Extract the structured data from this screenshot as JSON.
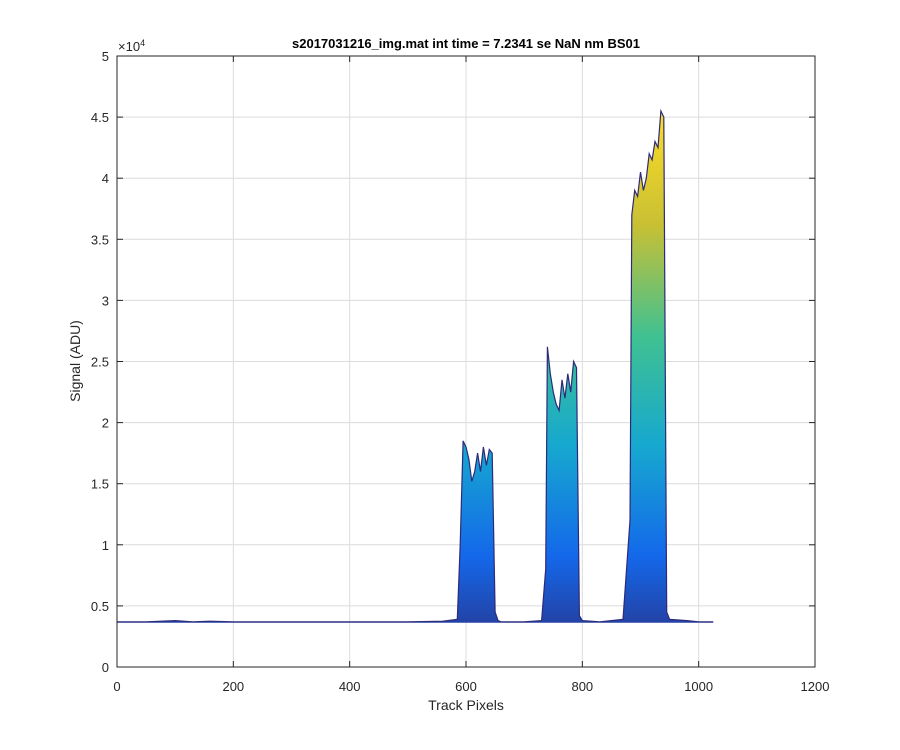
{
  "chart_data": {
    "type": "area",
    "title": "s2017031216_img.mat int time = 7.2341 se  NaN nm BS01",
    "xlabel": "Track Pixels",
    "ylabel": "Signal (ADU)",
    "xlim": [
      0,
      1200
    ],
    "ylim": [
      0,
      50000
    ],
    "x_ticks": [
      0,
      200,
      400,
      600,
      800,
      1000,
      1200
    ],
    "x_tick_labels": [
      "0",
      "200",
      "400",
      "600",
      "800",
      "1000",
      "1200"
    ],
    "y_ticks": [
      0,
      5000,
      10000,
      15000,
      20000,
      25000,
      30000,
      35000,
      40000,
      45000,
      50000
    ],
    "y_tick_labels": [
      "0",
      "0.5",
      "1",
      "1.5",
      "2",
      "2.5",
      "3",
      "3.5",
      "4",
      "4.5",
      "5"
    ],
    "y_exponent_label": "×10",
    "y_exponent_power": "4",
    "grid": true,
    "colormap": [
      "#2d2a79",
      "#1468ea",
      "#16a8cf",
      "#40c191",
      "#c8c034",
      "#fddb24"
    ],
    "series": [
      {
        "x": [
          0,
          50,
          100,
          130,
          160,
          200,
          300,
          400,
          500,
          560,
          585,
          590,
          595,
          600,
          605,
          610,
          615,
          620,
          625,
          630,
          635,
          640,
          645,
          650,
          655,
          660,
          700,
          730,
          737,
          740,
          745,
          750,
          755,
          760,
          765,
          770,
          775,
          780,
          785,
          790,
          795,
          800,
          830,
          870,
          882,
          885,
          890,
          895,
          900,
          905,
          910,
          915,
          920,
          925,
          930,
          935,
          940,
          945,
          950,
          980,
          1000,
          1025
        ],
        "y": [
          3700,
          3700,
          3800,
          3700,
          3750,
          3700,
          3700,
          3700,
          3700,
          3750,
          3900,
          10000,
          18500,
          18000,
          17000,
          15200,
          16000,
          17500,
          16000,
          18000,
          16500,
          17800,
          17500,
          4500,
          3800,
          3700,
          3700,
          3800,
          8000,
          26200,
          24000,
          22500,
          21500,
          21000,
          23500,
          22000,
          24000,
          22500,
          25000,
          24500,
          4200,
          3800,
          3700,
          3900,
          12000,
          37000,
          39000,
          38500,
          40500,
          39000,
          40000,
          42000,
          41500,
          43000,
          42500,
          45500,
          45000,
          4500,
          3900,
          3800,
          3700,
          3700
        ]
      }
    ]
  }
}
